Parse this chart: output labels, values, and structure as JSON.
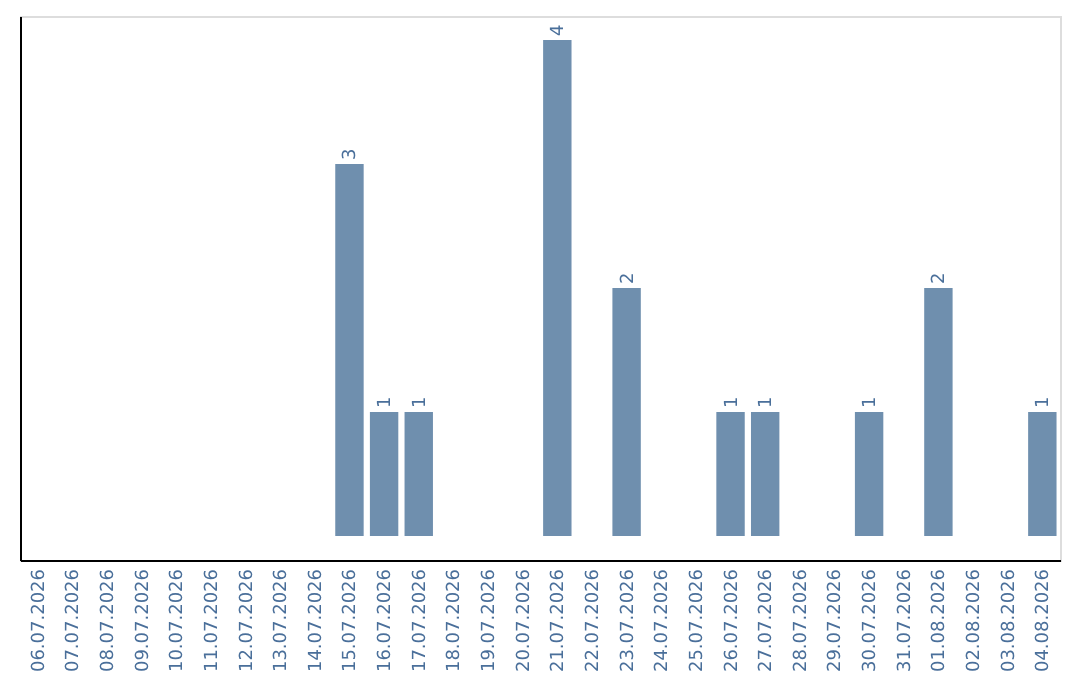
{
  "chart_data": {
    "type": "bar",
    "categories": [
      "06.07.2026",
      "07.07.2026",
      "08.07.2026",
      "09.07.2026",
      "10.07.2026",
      "11.07.2026",
      "12.07.2026",
      "13.07.2026",
      "14.07.2026",
      "15.07.2026",
      "16.07.2026",
      "17.07.2026",
      "18.07.2026",
      "19.07.2026",
      "20.07.2026",
      "21.07.2026",
      "22.07.2026",
      "23.07.2026",
      "24.07.2026",
      "25.07.2026",
      "26.07.2026",
      "27.07.2026",
      "28.07.2026",
      "29.07.2026",
      "30.07.2026",
      "31.07.2026",
      "01.08.2026",
      "02.08.2026",
      "03.08.2026",
      "04.08.2026"
    ],
    "values": [
      0,
      0,
      0,
      0,
      0,
      0,
      0,
      0,
      0,
      3,
      1,
      1,
      0,
      0,
      0,
      4,
      0,
      2,
      0,
      0,
      1,
      1,
      0,
      0,
      1,
      0,
      2,
      0,
      0,
      1
    ],
    "value_labels": [
      null,
      null,
      null,
      null,
      null,
      null,
      null,
      null,
      null,
      "3",
      "1",
      "1",
      null,
      null,
      null,
      "4",
      null,
      "2",
      null,
      null,
      "1",
      "1",
      null,
      null,
      "1",
      null,
      "2",
      null,
      null,
      "1"
    ],
    "color": "#6f8fae",
    "grid": false
  }
}
